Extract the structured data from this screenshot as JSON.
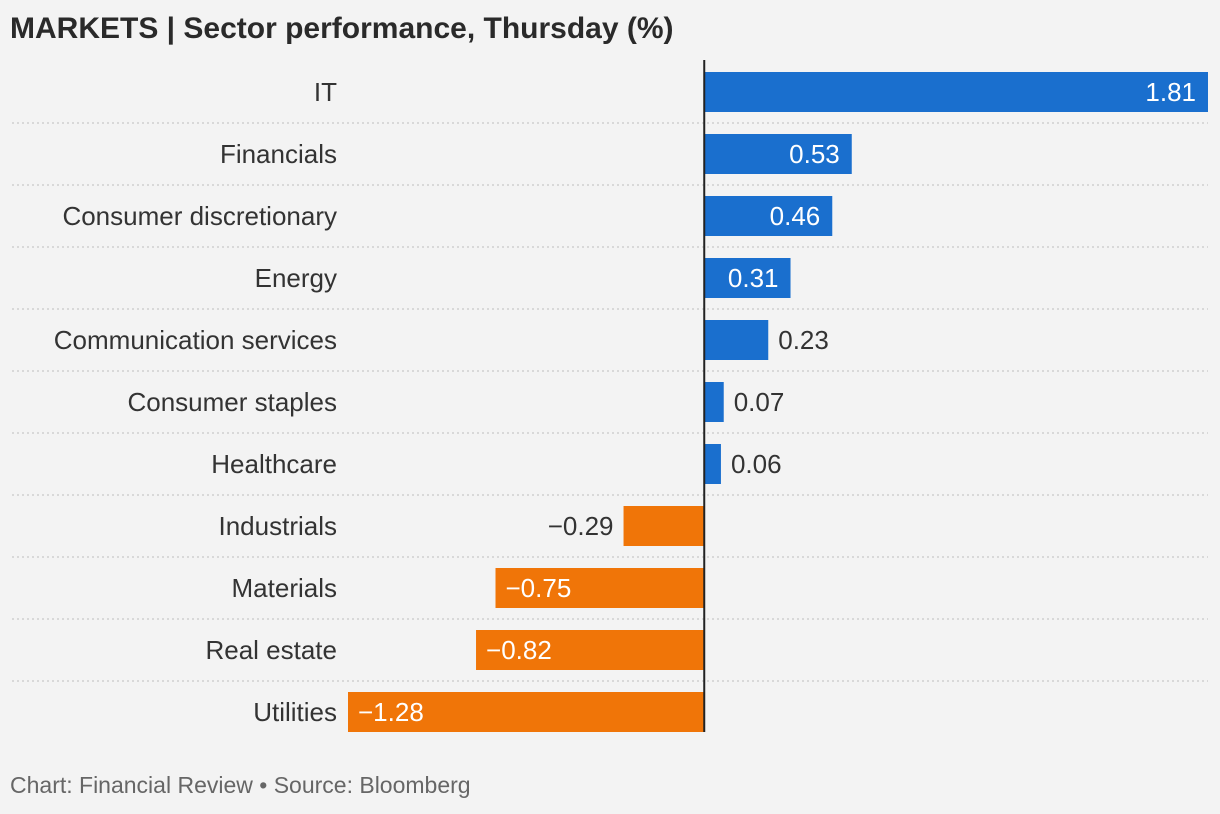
{
  "title": "MARKETS | Sector performance, Thursday (%)",
  "footer": "Chart: Financial Review • Source: Bloomberg",
  "colors": {
    "positive": "#1a6fce",
    "negative": "#f07508",
    "label": "#333333",
    "axis": "#222222",
    "gridline": "#c8c8c8"
  },
  "chart_data": {
    "type": "bar",
    "orientation": "horizontal",
    "categories": [
      "IT",
      "Financials",
      "Consumer discretionary",
      "Energy",
      "Communication services",
      "Consumer staples",
      "Healthcare",
      "Industrials",
      "Materials",
      "Real estate",
      "Utilities"
    ],
    "values": [
      1.81,
      0.53,
      0.46,
      0.31,
      0.23,
      0.07,
      0.06,
      -0.29,
      -0.75,
      -0.82,
      -1.28
    ],
    "value_labels": [
      "1.81",
      "0.53",
      "0.46",
      "0.31",
      "0.23",
      "0.07",
      "0.06",
      "−0.29",
      "−0.75",
      "−0.82",
      "−1.28"
    ],
    "xlim": [
      -1.28,
      1.81
    ],
    "grid": "dotted row separators",
    "legend": "none"
  }
}
